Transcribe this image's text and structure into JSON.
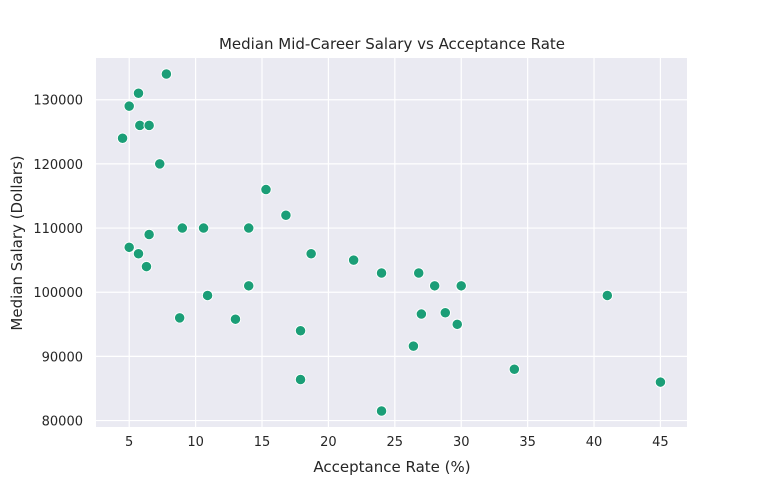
{
  "chart_data": {
    "type": "scatter",
    "title": "Median Mid-Career Salary vs Acceptance Rate",
    "xlabel": "Acceptance Rate (%)",
    "ylabel": "Median Salary (Dollars)",
    "xlim": [
      2.5,
      47
    ],
    "ylim": [
      79000,
      136500
    ],
    "xticks": [
      5,
      10,
      15,
      20,
      25,
      30,
      35,
      40,
      45
    ],
    "yticks": [
      80000,
      90000,
      100000,
      110000,
      120000,
      130000
    ],
    "grid": true,
    "colors": {
      "background": "#EAEAF2",
      "grid": "#FFFFFF",
      "point": "#1B9E77",
      "point_edge": "#FFFFFF"
    },
    "points": [
      {
        "x": 4.5,
        "y": 124000
      },
      {
        "x": 5.0,
        "y": 129000
      },
      {
        "x": 5.0,
        "y": 107000
      },
      {
        "x": 5.7,
        "y": 106000
      },
      {
        "x": 5.7,
        "y": 131000
      },
      {
        "x": 5.8,
        "y": 126000
      },
      {
        "x": 6.3,
        "y": 104000
      },
      {
        "x": 6.5,
        "y": 126000
      },
      {
        "x": 6.5,
        "y": 109000
      },
      {
        "x": 7.3,
        "y": 120000
      },
      {
        "x": 7.8,
        "y": 134000
      },
      {
        "x": 8.8,
        "y": 96000
      },
      {
        "x": 9.0,
        "y": 110000
      },
      {
        "x": 10.6,
        "y": 110000
      },
      {
        "x": 10.9,
        "y": 99500
      },
      {
        "x": 13.0,
        "y": 95800
      },
      {
        "x": 14.0,
        "y": 110000
      },
      {
        "x": 14.0,
        "y": 101000
      },
      {
        "x": 15.3,
        "y": 116000
      },
      {
        "x": 16.8,
        "y": 112000
      },
      {
        "x": 17.9,
        "y": 94000
      },
      {
        "x": 17.9,
        "y": 86400
      },
      {
        "x": 18.7,
        "y": 106000
      },
      {
        "x": 21.9,
        "y": 105000
      },
      {
        "x": 24.0,
        "y": 103000
      },
      {
        "x": 24.0,
        "y": 81500
      },
      {
        "x": 26.4,
        "y": 91600
      },
      {
        "x": 26.8,
        "y": 103000
      },
      {
        "x": 27.0,
        "y": 96600
      },
      {
        "x": 28.0,
        "y": 101000
      },
      {
        "x": 28.8,
        "y": 96800
      },
      {
        "x": 29.7,
        "y": 95000
      },
      {
        "x": 30.0,
        "y": 101000
      },
      {
        "x": 34.0,
        "y": 88000
      },
      {
        "x": 41.0,
        "y": 99500
      },
      {
        "x": 45.0,
        "y": 86000
      }
    ]
  }
}
